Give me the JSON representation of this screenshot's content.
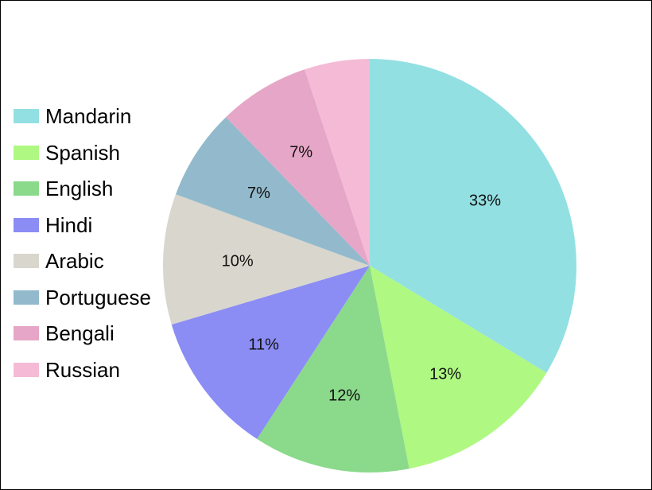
{
  "chart_data": {
    "type": "pie",
    "title": "",
    "start_angle_deg": 0,
    "direction": "clockwise",
    "legend_position": "left",
    "slices": [
      {
        "label": "Mandarin",
        "value": 33,
        "display": "33%",
        "color": "#93E0E3"
      },
      {
        "label": "Spanish",
        "value": 13,
        "display": "13%",
        "color": "#AFF882"
      },
      {
        "label": "English",
        "value": 12,
        "display": "12%",
        "color": "#8BD98B"
      },
      {
        "label": "Hindi",
        "value": 11,
        "display": "11%",
        "color": "#8B8DF5"
      },
      {
        "label": "Arabic",
        "value": 10,
        "display": "10%",
        "color": "#D9D6CD"
      },
      {
        "label": "Portuguese",
        "value": 7,
        "display": "7%",
        "color": "#92BACC"
      },
      {
        "label": "Bengali",
        "value": 7,
        "display": "7%",
        "color": "#E6A6C7"
      },
      {
        "label": "Russian",
        "value": 5,
        "display": "",
        "color": "#F5BBD6"
      }
    ]
  }
}
